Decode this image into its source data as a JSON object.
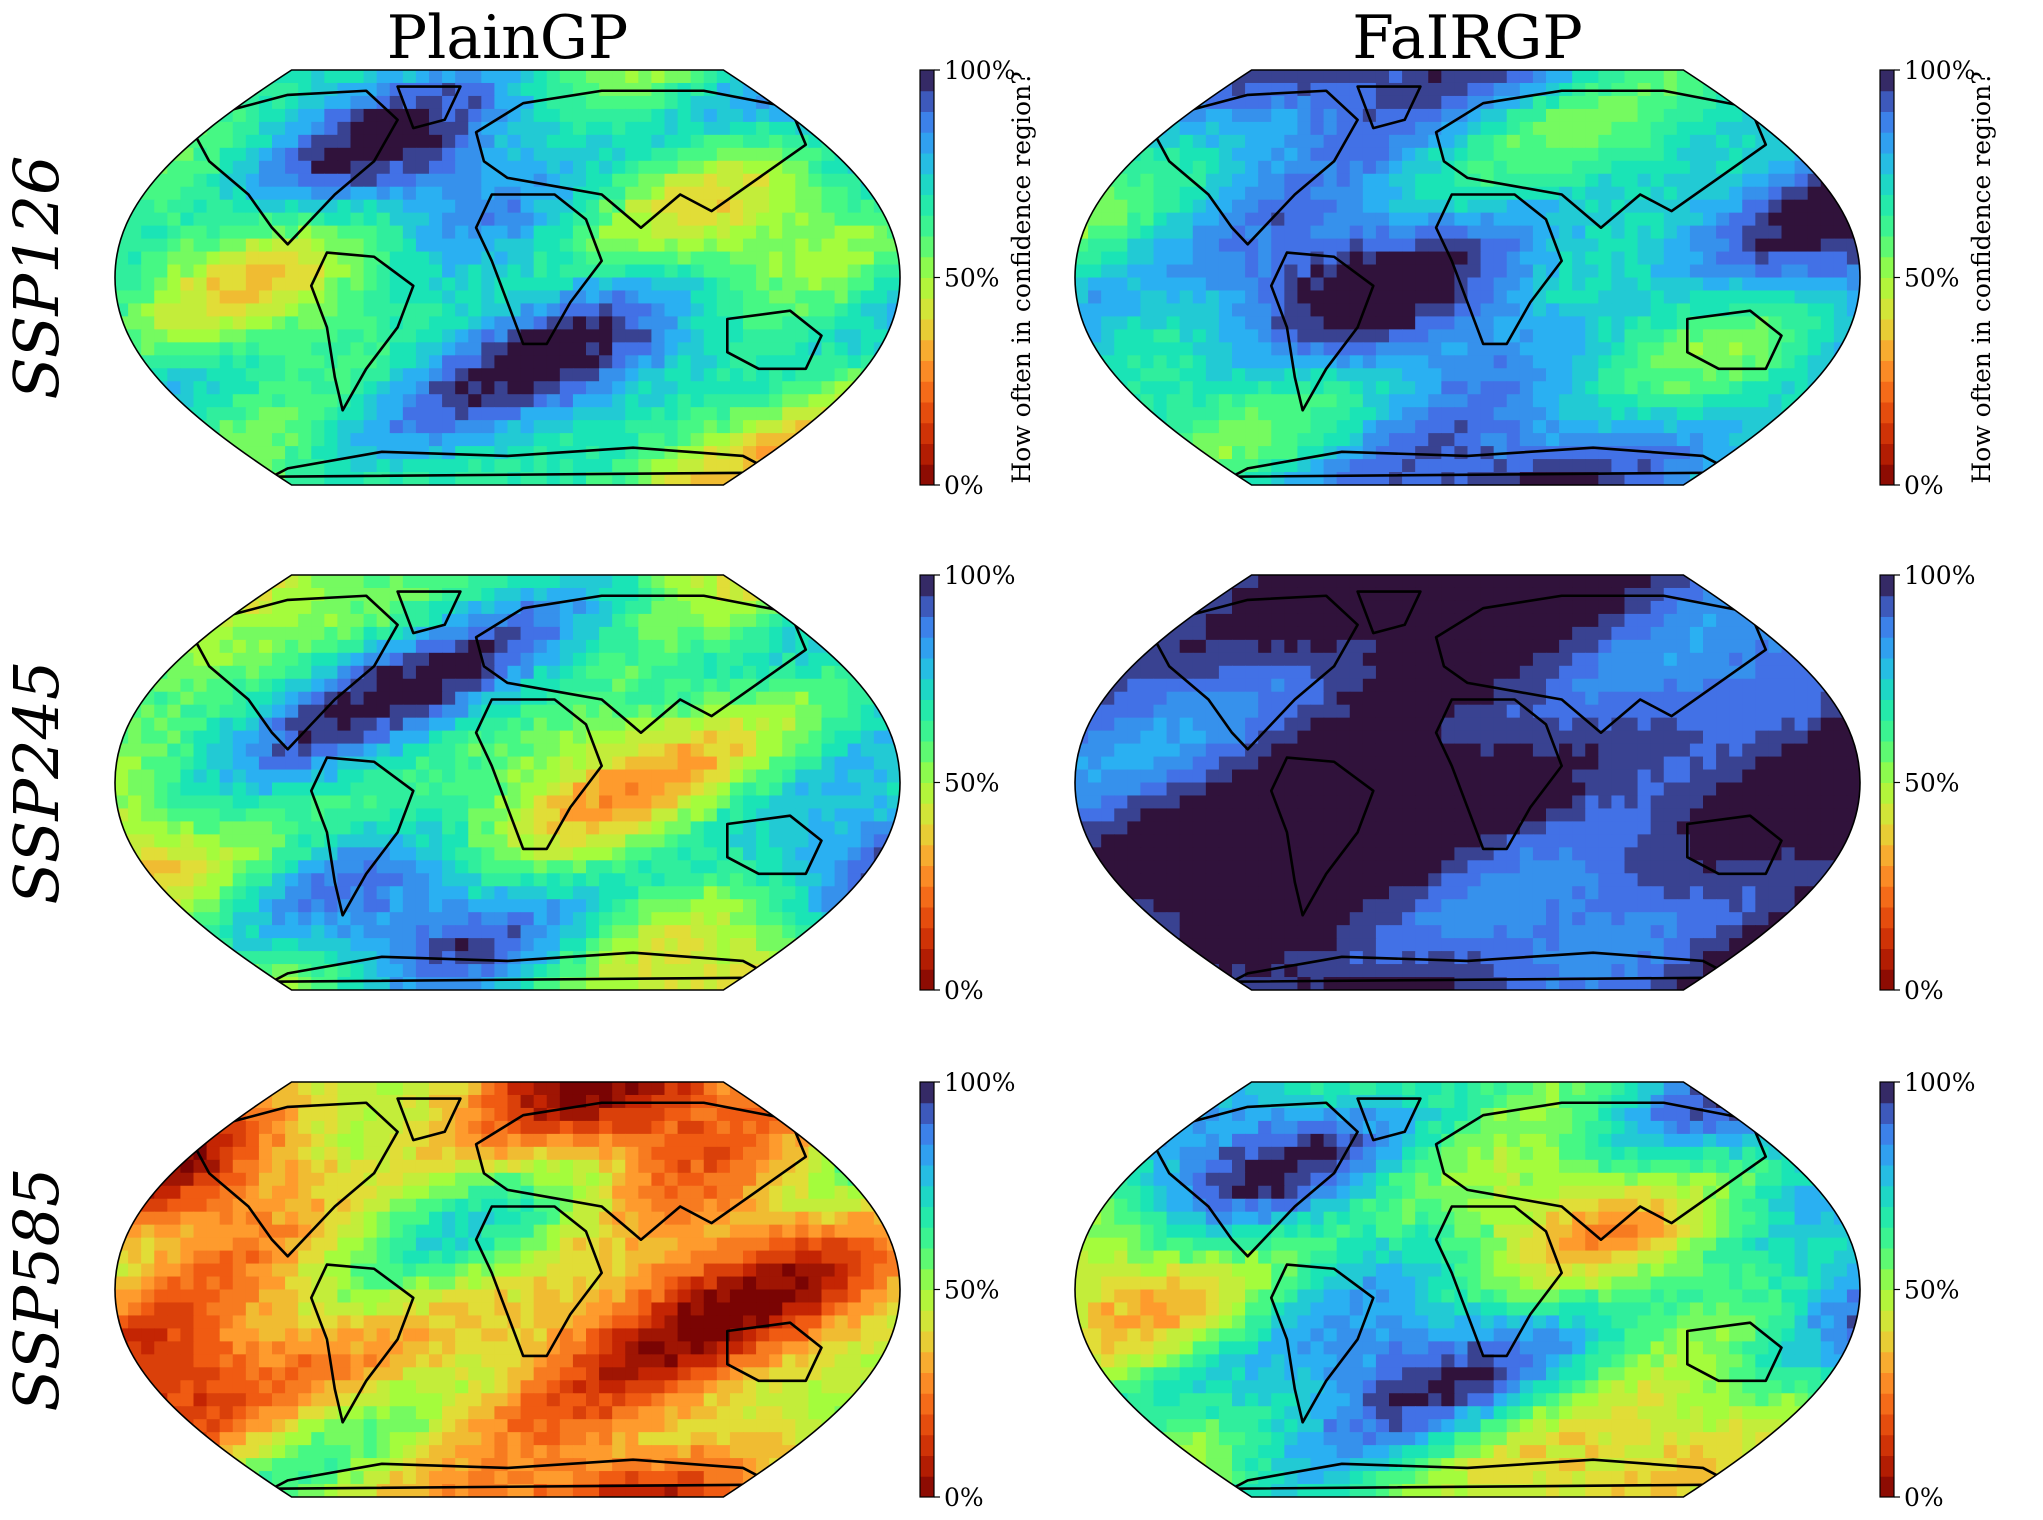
{
  "chart_data": {
    "type": "heatmap",
    "projection": "Robinson",
    "columns": [
      "PlainGP",
      "FaIRGP"
    ],
    "rows": [
      "SSP126",
      "SSP245",
      "SSP585"
    ],
    "colorbar": {
      "label": "How often in confidence region?",
      "ticks": [
        "0%",
        "50%",
        "100%"
      ],
      "range": [
        0,
        100
      ],
      "colormap": "turbo",
      "levels": 20
    },
    "panels": [
      {
        "column": "PlainGP",
        "row": "SSP126",
        "mean_coverage_pct": 70
      },
      {
        "column": "FaIRGP",
        "row": "SSP126",
        "mean_coverage_pct": 80
      },
      {
        "column": "PlainGP",
        "row": "SSP245",
        "mean_coverage_pct": 65
      },
      {
        "column": "FaIRGP",
        "row": "SSP245",
        "mean_coverage_pct": 97
      },
      {
        "column": "PlainGP",
        "row": "SSP585",
        "mean_coverage_pct": 35
      },
      {
        "column": "FaIRGP",
        "row": "SSP585",
        "mean_coverage_pct": 65
      }
    ]
  }
}
